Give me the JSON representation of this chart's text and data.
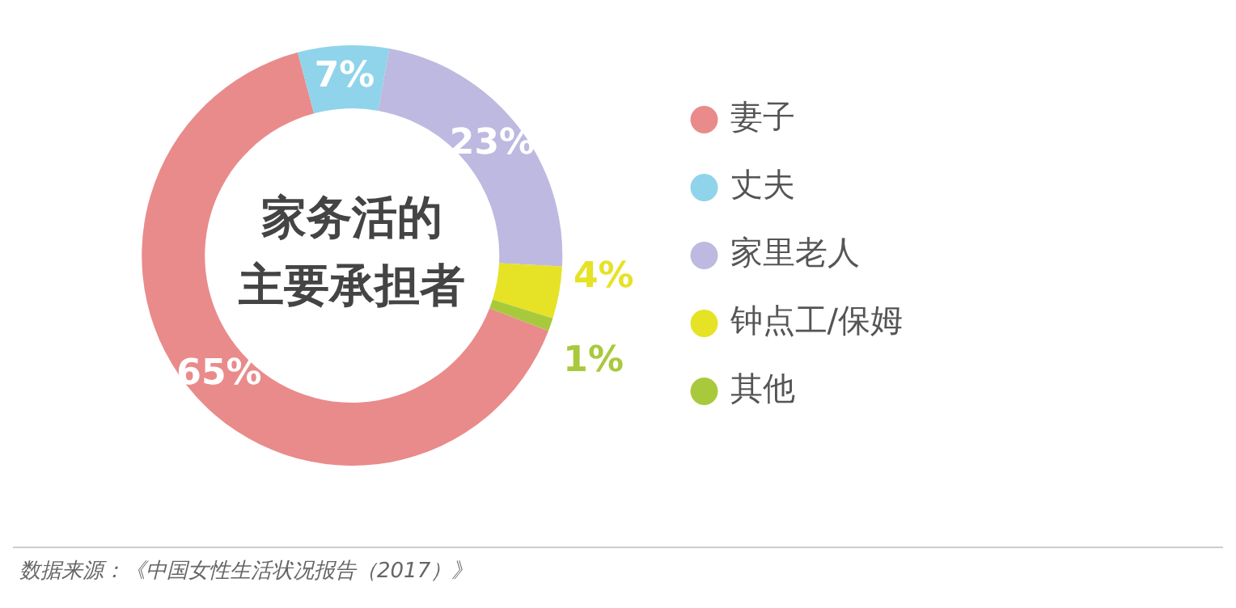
{
  "chart_data": {
    "type": "donut",
    "title": "家务活的主要承担者",
    "categories": [
      "妻子",
      "丈夫",
      "家里老人",
      "钟点工/保姆",
      "其他"
    ],
    "values": [
      65,
      7,
      23,
      4,
      1
    ],
    "value_labels": [
      "65%",
      "7%",
      "23%",
      "4%",
      "1%"
    ],
    "colors": [
      "#e98b8b",
      "#8fd4ea",
      "#bdb9e0",
      "#e6e226",
      "#a9c93c"
    ],
    "legend": "right",
    "annotations": [
      "数据来源：《中国女性生活状况报告（2017）》"
    ]
  }
}
